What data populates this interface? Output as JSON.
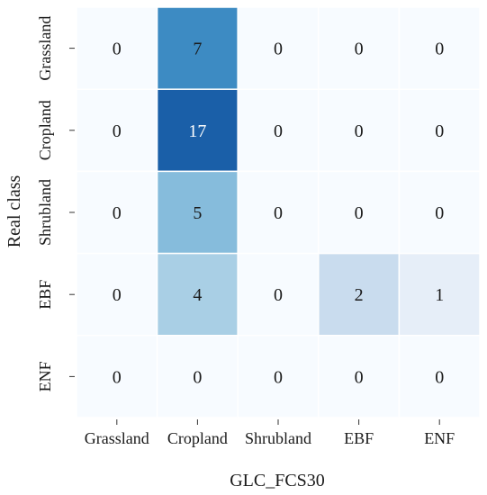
{
  "chart_data": {
    "type": "heatmap",
    "xlabel": "GLC_FCS30",
    "ylabel": "Real class",
    "x_categories": [
      "Grassland",
      "Cropland",
      "Shrubland",
      "EBF",
      "ENF"
    ],
    "y_categories": [
      "Grassland",
      "Cropland",
      "Shrubland",
      "EBF",
      "ENF"
    ],
    "values": [
      [
        0,
        7,
        0,
        0,
        0
      ],
      [
        0,
        17,
        0,
        0,
        0
      ],
      [
        0,
        5,
        0,
        0,
        0
      ],
      [
        0,
        4,
        0,
        2,
        1
      ],
      [
        0,
        0,
        0,
        0,
        0
      ]
    ],
    "colormap": "Blues",
    "color_range": [
      0,
      17
    ],
    "colors": {
      "0": "#f7fbff",
      "1": "#e6eef8",
      "2": "#c9dcee",
      "4": "#a9cfe5",
      "5": "#86bcdc",
      "7": "#3d8bc3",
      "17": "#1a5fa8"
    },
    "cell_border": "#ffffff",
    "grid": false,
    "colorbar": false
  }
}
